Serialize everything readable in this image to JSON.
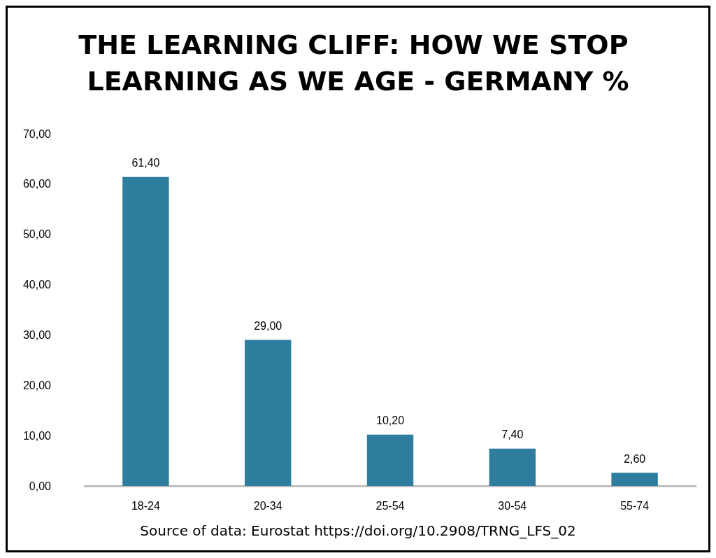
{
  "chart_data": {
    "type": "bar",
    "title": "THE LEARNING CLIFF: HOW WE STOP LEARNING AS WE AGE - GERMANY %",
    "categories": [
      "18-24",
      "20-34",
      "25-54",
      "30-54",
      "55-74"
    ],
    "values": [
      61.4,
      29.0,
      10.2,
      7.4,
      2.6
    ],
    "value_labels": [
      "61,40",
      "29,00",
      "10,20",
      "7,40",
      "2,60"
    ],
    "color": "#2f7d9e",
    "ylim": [
      0,
      70
    ],
    "yticks": [
      {
        "value": 0,
        "label": "0,00"
      },
      {
        "value": 10,
        "label": "10,00"
      },
      {
        "value": 20,
        "label": "20,00"
      },
      {
        "value": 30,
        "label": "30,00"
      },
      {
        "value": 40,
        "label": "40,00"
      },
      {
        "value": 50,
        "label": "50,00"
      },
      {
        "value": 60,
        "label": "60,00"
      },
      {
        "value": 70,
        "label": "70,00"
      }
    ],
    "annotations": [
      "Source of data: Eurostat https://doi.org/10.2908/TRNG_LFS_02"
    ]
  }
}
